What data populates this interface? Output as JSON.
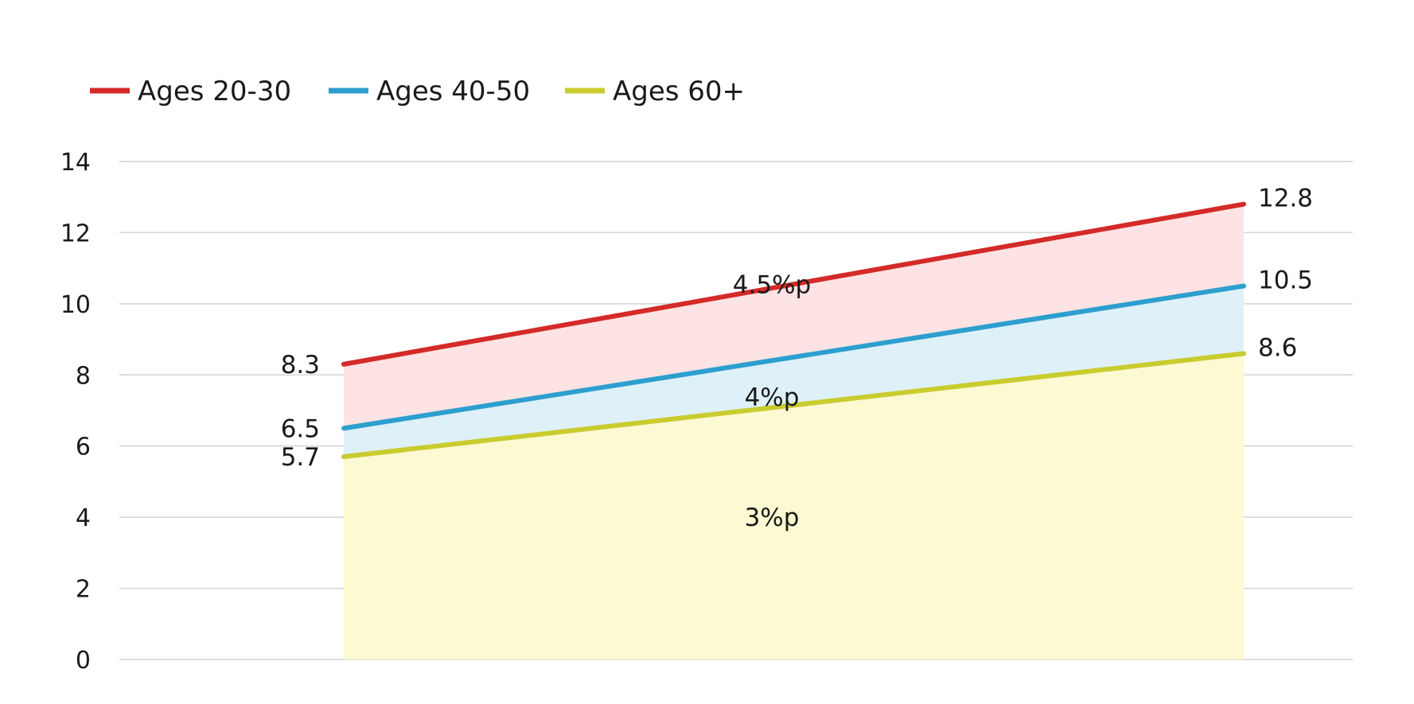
{
  "chart_data": {
    "type": "area",
    "title": "",
    "xlabel": "",
    "ylabel": "",
    "ylim": [
      0,
      14
    ],
    "yticks": [
      0,
      2,
      4,
      6,
      8,
      10,
      12,
      14
    ],
    "grid": true,
    "legend_position": "top-left",
    "x": [
      0,
      1
    ],
    "series": [
      {
        "name": "Ages 20-30",
        "values": [
          8.3,
          12.8
        ],
        "color": "#d42a28",
        "fill": "#fde3e3"
      },
      {
        "name": "Ages 40-50",
        "values": [
          6.5,
          10.5
        ],
        "color": "#2d9fcf",
        "fill": "#def0f8"
      },
      {
        "name": "Ages 60+",
        "values": [
          5.7,
          8.6
        ],
        "color": "#c9cc2e",
        "fill": "#fdf9d2"
      }
    ],
    "data_labels": {
      "start": [
        "8.3",
        "6.5",
        "5.7"
      ],
      "end": [
        "12.8",
        "10.5",
        "8.6"
      ]
    },
    "annotations": [
      {
        "text": "4.5%p",
        "series": "Ages 20-30"
      },
      {
        "text": "4%p",
        "series": "Ages 40-50"
      },
      {
        "text": "3%p",
        "series": "Ages 60+"
      }
    ]
  }
}
